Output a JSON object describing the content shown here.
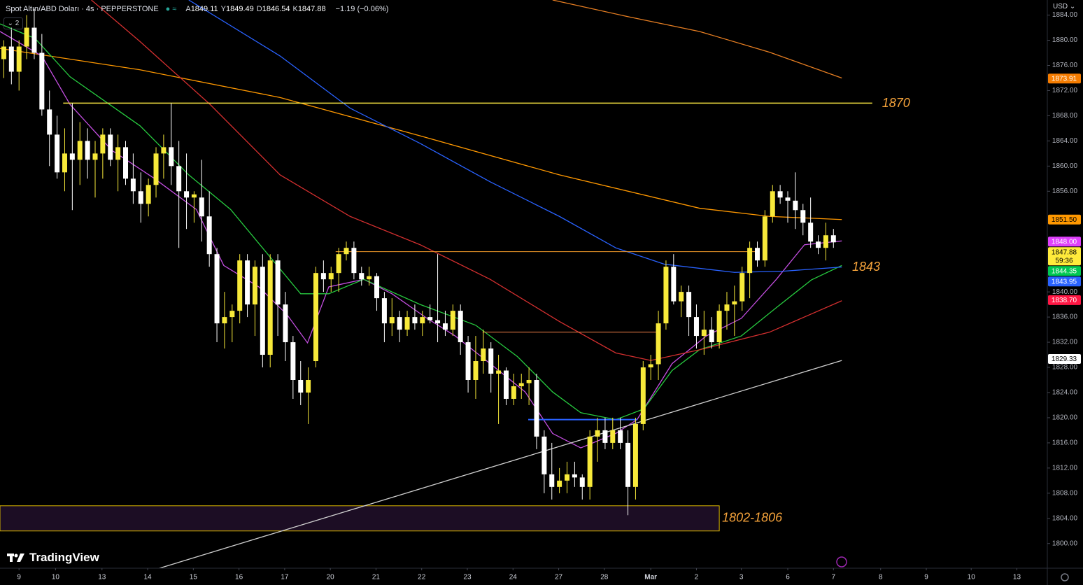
{
  "chart_data": {
    "type": "candlestick",
    "title": "Spot Altın/ABD Doları · 4s · PEPPERSTONE",
    "ohlc_legend": [
      {
        "key": "A",
        "value": 1849.11
      },
      {
        "key": "Y",
        "value": 1849.49
      },
      {
        "key": "D",
        "value": 1846.54
      },
      {
        "key": "K",
        "value": 1847.88
      }
    ],
    "change": "−1.19 (−0.06%)",
    "currency": "USD",
    "collapsed_indicators": 2,
    "brand": "TradingView",
    "countdown": "59:36",
    "last_price_color": "#ffeb3b",
    "up_color": "#f7e93a",
    "down_color": "#ffffff",
    "xlim": [
      -2.5,
      135.1
    ],
    "xticks": [
      {
        "value": 0,
        "label": "9"
      },
      {
        "value": 4.8,
        "label": "10"
      },
      {
        "value": 10.9,
        "label": "13"
      },
      {
        "value": 16.9,
        "label": "14"
      },
      {
        "value": 22.9,
        "label": "15"
      },
      {
        "value": 28.9,
        "label": "16"
      },
      {
        "value": 34.9,
        "label": "17"
      },
      {
        "value": 40.9,
        "label": "20"
      },
      {
        "value": 46.9,
        "label": "21"
      },
      {
        "value": 52.9,
        "label": "22"
      },
      {
        "value": 58.9,
        "label": "23"
      },
      {
        "value": 64.9,
        "label": "24"
      },
      {
        "value": 70.9,
        "label": "27"
      },
      {
        "value": 76.9,
        "label": "28"
      },
      {
        "value": 83,
        "label": "Mar"
      },
      {
        "value": 89,
        "label": "2"
      },
      {
        "value": 94.9,
        "label": "3"
      },
      {
        "value": 101,
        "label": "6"
      },
      {
        "value": 107,
        "label": "7"
      },
      {
        "value": 113.2,
        "label": "8"
      },
      {
        "value": 119.2,
        "label": "9"
      },
      {
        "value": 125.1,
        "label": "10"
      },
      {
        "value": 131.1,
        "label": "13"
      }
    ],
    "ylim": [
      1796.3,
      1886.4
    ],
    "yticks": [
      {
        "value": 1800,
        "label": "1800.00"
      },
      {
        "value": 1804,
        "label": "1804.00"
      },
      {
        "value": 1808,
        "label": "1808.00"
      },
      {
        "value": 1812,
        "label": "1812.00"
      },
      {
        "value": 1816,
        "label": "1816.00"
      },
      {
        "value": 1820,
        "label": "1820.00"
      },
      {
        "value": 1824,
        "label": "1824.00"
      },
      {
        "value": 1828,
        "label": "1828.00"
      },
      {
        "value": 1832,
        "label": "1832.00"
      },
      {
        "value": 1836,
        "label": "1836.00"
      },
      {
        "value": 1840,
        "label": "1840.00"
      },
      {
        "value": 1856,
        "label": "1856.00"
      },
      {
        "value": 1860,
        "label": "1860.00"
      },
      {
        "value": 1864,
        "label": "1864.00"
      },
      {
        "value": 1868,
        "label": "1868.00"
      },
      {
        "value": 1872,
        "label": "1872.00"
      },
      {
        "value": 1876,
        "label": "1876.00"
      },
      {
        "value": 1880,
        "label": "1880.00"
      },
      {
        "value": 1884,
        "label": "1884.00"
      }
    ],
    "grid": false,
    "x": [
      -2,
      -1,
      0,
      1,
      2,
      3,
      4,
      5,
      6,
      7,
      8,
      9,
      10,
      11,
      12,
      13,
      14,
      15,
      16,
      17,
      18,
      19,
      20,
      21,
      22,
      23,
      24,
      25,
      26,
      27,
      28,
      29,
      30,
      31,
      32,
      33,
      34,
      35,
      36,
      37,
      38,
      39,
      40,
      41,
      42,
      43,
      44,
      45,
      46,
      47,
      48,
      49,
      50,
      51,
      52,
      53,
      54,
      55,
      56,
      57,
      58,
      59,
      60,
      61,
      62,
      63,
      64,
      65,
      66,
      67,
      68,
      69,
      70,
      71,
      72,
      73,
      74,
      75,
      76,
      77,
      78,
      79,
      80,
      81,
      82,
      83,
      84,
      85,
      86,
      87,
      88,
      89,
      90,
      91,
      92,
      93,
      94,
      95,
      96,
      97,
      98,
      99,
      100,
      101,
      102,
      103,
      104,
      105,
      106,
      107
    ],
    "candles": [
      [
        1877,
        1880,
        1874,
        1879
      ],
      [
        1879,
        1882,
        1873,
        1875
      ],
      [
        1875,
        1880,
        1872,
        1879
      ],
      [
        1879,
        1884,
        1877,
        1882
      ],
      [
        1882,
        1885,
        1877,
        1878
      ],
      [
        1878,
        1881,
        1868,
        1869
      ],
      [
        1869,
        1872,
        1860,
        1865
      ],
      [
        1865,
        1868,
        1858,
        1859
      ],
      [
        1859,
        1866,
        1856,
        1862
      ],
      [
        1862,
        1870,
        1853,
        1861
      ],
      [
        1861,
        1867,
        1857,
        1864
      ],
      [
        1864,
        1866,
        1858,
        1861
      ],
      [
        1861,
        1864,
        1855,
        1862
      ],
      [
        1862,
        1866,
        1858,
        1865
      ],
      [
        1865,
        1866,
        1860,
        1861
      ],
      [
        1861,
        1865,
        1856,
        1863
      ],
      [
        1863,
        1864,
        1857,
        1858
      ],
      [
        1858,
        1862,
        1854,
        1856
      ],
      [
        1856,
        1859,
        1851,
        1854
      ],
      [
        1854,
        1858,
        1852,
        1857
      ],
      [
        1857,
        1863,
        1855,
        1862
      ],
      [
        1862,
        1865,
        1858,
        1863
      ],
      [
        1863,
        1870,
        1857,
        1860
      ],
      [
        1860,
        1864,
        1847,
        1856
      ],
      [
        1856,
        1862,
        1850,
        1855
      ],
      [
        1855,
        1856,
        1851,
        1855.5
      ],
      [
        1855,
        1861,
        1848,
        1852
      ],
      [
        1852,
        1856,
        1844,
        1846
      ],
      [
        1846,
        1847,
        1832,
        1835
      ],
      [
        1835,
        1840,
        1831,
        1836
      ],
      [
        1836,
        1838,
        1832,
        1837
      ],
      [
        1837,
        1846,
        1835,
        1845
      ],
      [
        1845,
        1846,
        1836,
        1838
      ],
      [
        1838,
        1845,
        1833,
        1844
      ],
      [
        1844,
        1846,
        1828,
        1830
      ],
      [
        1830,
        1846,
        1828,
        1845
      ],
      [
        1845,
        1846,
        1833,
        1838
      ],
      [
        1838,
        1840,
        1829,
        1832
      ],
      [
        1832,
        1833,
        1823,
        1826
      ],
      [
        1826,
        1829,
        1822,
        1824
      ],
      [
        1824,
        1828,
        1819,
        1826
      ],
      [
        1829,
        1844,
        1828,
        1843
      ],
      [
        1843,
        1845,
        1840,
        1842
      ],
      [
        1842,
        1844,
        1840,
        1843
      ],
      [
        1843,
        1847,
        1840,
        1846
      ],
      [
        1846,
        1848,
        1845,
        1847
      ],
      [
        1847,
        1848,
        1842,
        1843
      ],
      [
        1843,
        1844,
        1841,
        1842
      ],
      [
        1842,
        1844,
        1841,
        1842.5
      ],
      [
        1842.5,
        1843,
        1837,
        1839
      ],
      [
        1839,
        1840,
        1832,
        1835
      ],
      [
        1835,
        1839,
        1833,
        1836
      ],
      [
        1836,
        1837,
        1832,
        1834
      ],
      [
        1834,
        1837,
        1833,
        1836
      ],
      [
        1836,
        1838,
        1834,
        1835
      ],
      [
        1835,
        1837,
        1833,
        1836
      ],
      [
        1836,
        1838,
        1835,
        1835.5
      ],
      [
        1835.5,
        1846,
        1832,
        1835
      ],
      [
        1835,
        1837,
        1833,
        1834
      ],
      [
        1834,
        1838,
        1833,
        1837
      ],
      [
        1837,
        1838,
        1830,
        1832
      ],
      [
        1832,
        1833,
        1824,
        1826
      ],
      [
        1826,
        1833,
        1823,
        1829
      ],
      [
        1829,
        1834,
        1827,
        1831
      ],
      [
        1831,
        1832,
        1824,
        1827
      ],
      [
        1827,
        1830,
        1819,
        1827.5
      ],
      [
        1827.5,
        1828,
        1822,
        1823
      ],
      [
        1823,
        1827,
        1822,
        1825
      ],
      [
        1825,
        1827,
        1823,
        1825.5
      ],
      [
        1825.5,
        1828,
        1822,
        1826
      ],
      [
        1826,
        1827,
        1815,
        1817
      ],
      [
        1817,
        1818,
        1808,
        1811
      ],
      [
        1811,
        1816,
        1807,
        1809
      ],
      [
        1809,
        1812,
        1808,
        1810
      ],
      [
        1810,
        1813,
        1808,
        1811
      ],
      [
        1811,
        1813,
        1809,
        1810.5
      ],
      [
        1810.5,
        1811,
        1807,
        1809
      ],
      [
        1809,
        1818,
        1807,
        1817
      ],
      [
        1817,
        1820,
        1813,
        1818
      ],
      [
        1818,
        1820,
        1815,
        1816
      ],
      [
        1816,
        1820,
        1815,
        1818
      ],
      [
        1818,
        1820,
        1815,
        1816
      ],
      [
        1816,
        1818,
        1804.5,
        1809
      ],
      [
        1809,
        1820,
        1807,
        1819
      ],
      [
        1819,
        1829,
        1818,
        1828
      ],
      [
        1828,
        1830,
        1826,
        1828.5
      ],
      [
        1828.5,
        1837,
        1826,
        1835
      ],
      [
        1835,
        1845,
        1834,
        1844
      ],
      [
        1844,
        1846,
        1838,
        1838.5
      ],
      [
        1838.5,
        1841,
        1836,
        1840
      ],
      [
        1840,
        1841,
        1833,
        1836
      ],
      [
        1836,
        1838,
        1831,
        1833
      ],
      [
        1833,
        1837,
        1830,
        1834
      ],
      [
        1834,
        1836,
        1831,
        1832
      ],
      [
        1832,
        1838,
        1831,
        1837
      ],
      [
        1837,
        1840,
        1834,
        1838
      ],
      [
        1838,
        1841,
        1833,
        1838.5
      ],
      [
        1838.5,
        1844,
        1837,
        1843
      ],
      [
        1843,
        1848,
        1839,
        1847
      ],
      [
        1847,
        1848,
        1844,
        1845
      ],
      [
        1845,
        1853,
        1844,
        1852
      ],
      [
        1852,
        1857,
        1851,
        1856
      ],
      [
        1856,
        1857,
        1854,
        1855
      ],
      [
        1855,
        1856,
        1851,
        1854.5
      ],
      [
        1854.5,
        1859,
        1850,
        1853
      ],
      [
        1853,
        1854,
        1849,
        1851
      ],
      [
        1851,
        1855,
        1847,
        1848
      ],
      [
        1848,
        1849,
        1846,
        1847
      ],
      [
        1847,
        1851,
        1845,
        1849
      ],
      [
        1849,
        1850,
        1847,
        1847.88
      ]
    ],
    "series": [
      {
        "color": "#e67e22",
        "badge_color": "#f57c00",
        "x": [
          70.1,
          80.2,
          89.4,
          98.6,
          108.1
        ],
        "values": [
          1886.4,
          1883.7,
          1881.4,
          1878.1,
          1874
        ],
        "last_value": 1873.91
      },
      {
        "color": "#ff9800",
        "badge_color": "#ff9800",
        "x": [
          -2.5,
          15.9,
          34.3,
          52.7,
          71.0,
          89.4,
          98.6,
          108.1
        ],
        "values": [
          1878.7,
          1875.3,
          1870.9,
          1864.8,
          1858.6,
          1853.3,
          1852,
          1851.5
        ],
        "last_value": 1851.5,
        "last_label": "1851.50"
      },
      {
        "color": "#c34ee0",
        "badge_color": "#e040fb",
        "x": [
          -2.5,
          3.0,
          6.7,
          12.2,
          17.7,
          23.3,
          26.9,
          31.5,
          35.2,
          37.9,
          40.7,
          45.3,
          49.0,
          53.6,
          57.3,
          61.9,
          66.5,
          70.1,
          73.8,
          78.4,
          81.2,
          85.8,
          90.3,
          94.9,
          99.5,
          103.2,
          108.1
        ],
        "values": [
          1881.4,
          1877.5,
          1869.8,
          1862.5,
          1858.1,
          1853.1,
          1844.2,
          1840.8,
          1836.4,
          1831.9,
          1840.8,
          1842,
          1839.7,
          1835.8,
          1833,
          1828.6,
          1824.1,
          1817.5,
          1815.2,
          1817.5,
          1819.7,
          1828.6,
          1833,
          1835.8,
          1842,
          1847.5,
          1848.1
        ],
        "last_value": 1848,
        "last_label": "1848.00"
      },
      {
        "color": "#27c93f",
        "badge_color": "#00c853",
        "x": [
          -2.5,
          2.1,
          6.7,
          15.9,
          22.3,
          27.8,
          32.4,
          37.0,
          40.7,
          45.3,
          52.7,
          60.0,
          65.5,
          70.1,
          73.8,
          78.4,
          82.1,
          85.8,
          89.4,
          94.9,
          99.5,
          104.1,
          108.1
        ],
        "values": [
          1882.6,
          1880.3,
          1874.2,
          1866.4,
          1858.6,
          1853.1,
          1846.4,
          1839.7,
          1839.7,
          1842,
          1838,
          1834.7,
          1829.7,
          1824.1,
          1820.8,
          1819.7,
          1821.4,
          1827.5,
          1830.8,
          1833,
          1837.5,
          1841.9,
          1844.2
        ],
        "last_value": 1844.35
      },
      {
        "color": "#2962ff",
        "badge_color": "#2962ff",
        "x": [
          22.3,
          34.3,
          43.5,
          52.7,
          61.9,
          71.0,
          78.4,
          84.8,
          94.0,
          100.5,
          108.1
        ],
        "values": [
          1886.4,
          1877.5,
          1869.2,
          1863.6,
          1857.5,
          1852,
          1847,
          1844.4,
          1843.1,
          1843.3,
          1843.95
        ],
        "last_value": 1843.95
      },
      {
        "color": "#d32f2f",
        "badge_color": "#ff1744",
        "x": [
          9.5,
          15.9,
          25.1,
          34.3,
          43.5,
          52.7,
          61.9,
          71.0,
          78.4,
          83.0,
          89.4,
          98.6,
          108.1
        ],
        "values": [
          1886.4,
          1879.8,
          1869.8,
          1858.6,
          1852,
          1847.5,
          1842,
          1835.3,
          1830.3,
          1829.1,
          1830.8,
          1833.6,
          1838.6
        ],
        "last_value": 1838.7,
        "last_label": "1838.70"
      },
      {
        "color": "#cfcfcf",
        "badge_color": "#ffffff",
        "x": [
          17.7,
          108.1
        ],
        "values": [
          1795.8,
          1829.1
        ],
        "last_value": 1829.33
      }
    ],
    "levels": [
      {
        "value": 1870,
        "from": 5.8,
        "to": 112.1,
        "color": "#f5e342",
        "width": 1.5,
        "label": "1870"
      },
      {
        "value": 1846.4,
        "from": 41.6,
        "to": 97.2,
        "color": "#f59b2a",
        "width": 1
      },
      {
        "value": 1833.6,
        "from": 60.9,
        "to": 83.9,
        "color": "#f5834a",
        "width": 1
      },
      {
        "value": 1819.7,
        "from": 66.9,
        "to": 81.2,
        "color": "#2962ff",
        "width": 2
      }
    ],
    "annotations": [
      {
        "text": "1843",
        "value": 1843
      }
    ],
    "zone": {
      "range": [
        1802,
        1806
      ],
      "from": -2.5,
      "to": 92,
      "label": "1802-1806",
      "fill": "#1c0d24",
      "border": "#d9b600"
    }
  }
}
